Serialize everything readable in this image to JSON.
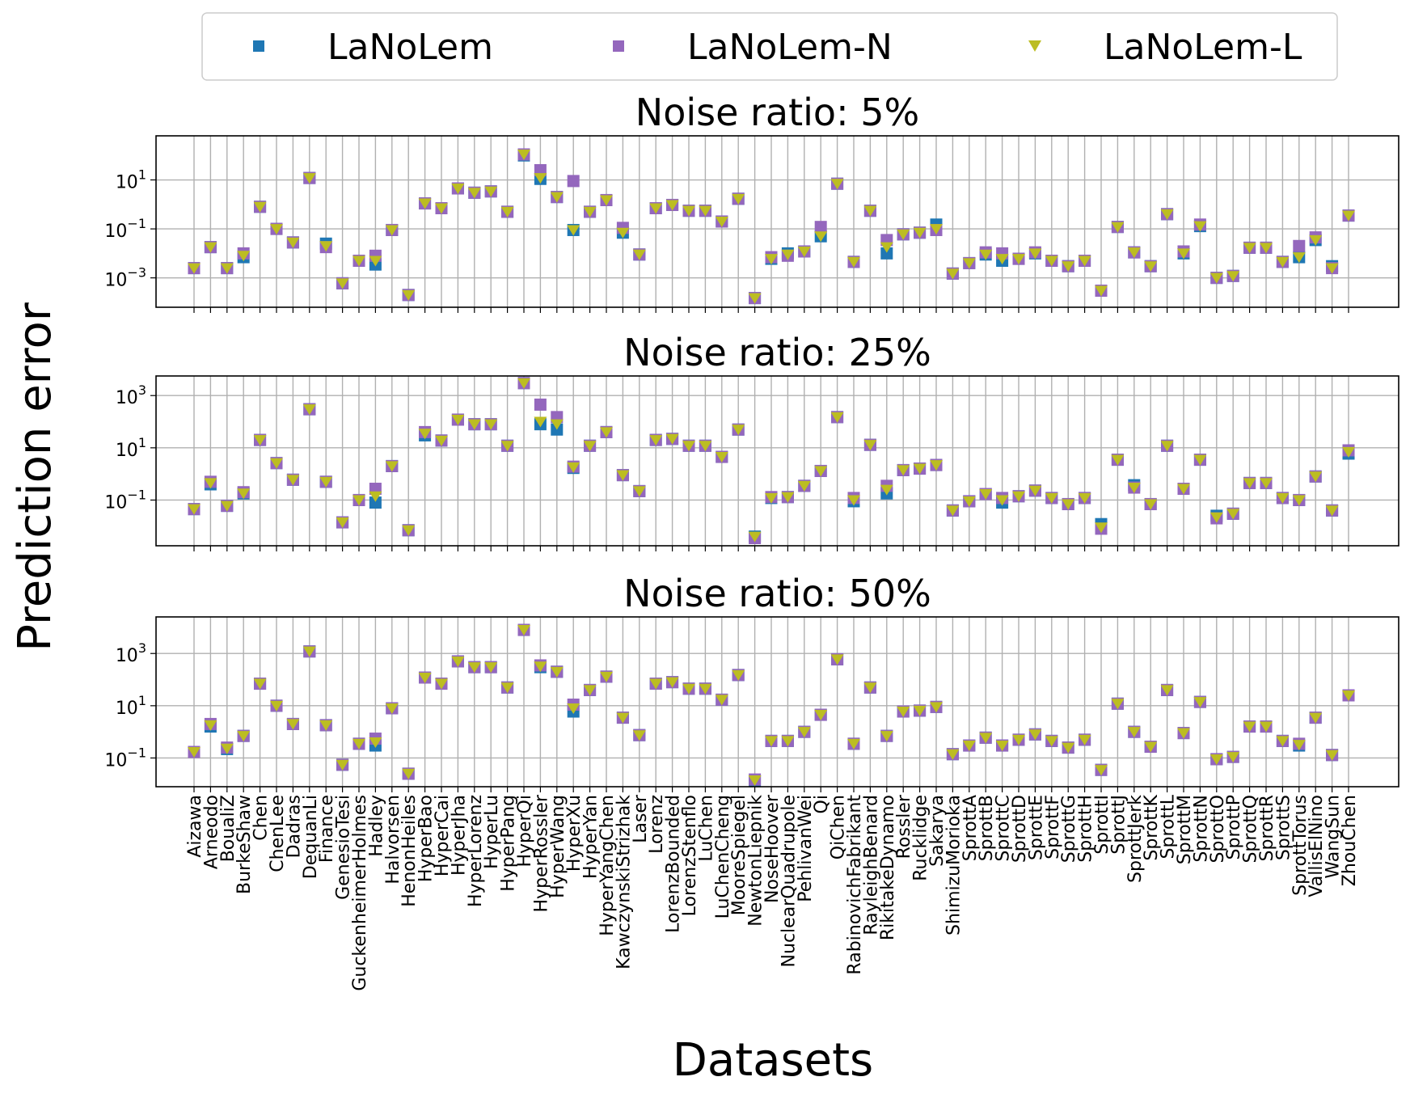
{
  "chart_data": {
    "type": "scatter",
    "ylabel": "Prediction error",
    "xlabel": "Datasets",
    "yscale": "log",
    "legend": {
      "placement": "top-center",
      "entries": [
        {
          "name": "LaNoLem",
          "marker": "square",
          "color": "#1f77b4"
        },
        {
          "name": "LaNoLem-N",
          "marker": "square",
          "color": "#9467bd"
        },
        {
          "name": "LaNoLem-L",
          "marker": "triangle-down",
          "color": "#bcbd22"
        }
      ]
    },
    "categories": [
      "Aizawa",
      "Arneodo",
      "BoualiZ",
      "BurkeShaw",
      "Chen",
      "ChenLee",
      "Dadras",
      "DequanLi",
      "Finance",
      "GenesioTesi",
      "GuckenheimerHolmes",
      "Hadley",
      "Halvorsen",
      "HenonHeiles",
      "HyperBao",
      "HyperCai",
      "HyperJha",
      "HyperLorenz",
      "HyperLu",
      "HyperPang",
      "HyperQi",
      "HyperRossler",
      "HyperWang",
      "HyperXu",
      "HyperYan",
      "HyperYangChen",
      "KawczynskiStrizhak",
      "Laser",
      "Lorenz",
      "LorenzBounded",
      "LorenzStenflo",
      "LuChen",
      "LuChenCheng",
      "MooreSpiegel",
      "NewtonLiepnik",
      "NoseHoover",
      "NuclearQuadrupole",
      "PehlivanWei",
      "Qi",
      "QiChen",
      "RabinovichFabrikant",
      "RayleighBenard",
      "RikitakeDynamo",
      "Rossler",
      "Rucklidge",
      "Sakarya",
      "ShimizuMorioka",
      "SprottA",
      "SprottB",
      "SprottC",
      "SprottD",
      "SprottE",
      "SprottF",
      "SprottG",
      "SprottH",
      "SprottI",
      "SprottJ",
      "SprottJerk",
      "SprottK",
      "SprottL",
      "SprottM",
      "SprottN",
      "SprottO",
      "SprottP",
      "SprottQ",
      "SprottR",
      "SprottS",
      "SprottTorus",
      "VallisElNino",
      "WangSun",
      "ZhouChen"
    ],
    "panels": [
      {
        "title": "Noise ratio: 5%",
        "ylim_exp": [
          -4.2,
          2.8
        ],
        "yticks": [
          {
            "exp": 1,
            "label": "10",
            "sup": "1"
          },
          {
            "exp": -1,
            "label": "10",
            "sup": "−1"
          },
          {
            "exp": -3,
            "label": "10",
            "sup": "−3"
          }
        ],
        "series": [
          {
            "name": "LaNoLem",
            "values": [
              0.0025,
              0.018,
              0.0025,
              0.007,
              0.8,
              0.1,
              0.028,
              12,
              0.025,
              0.0006,
              0.005,
              0.0035,
              0.09,
              0.0002,
              1.1,
              0.7,
              4.5,
              3,
              3.4,
              0.5,
              100,
              11,
              2.0,
              0.09,
              0.5,
              1.5,
              0.07,
              0.009,
              0.7,
              0.95,
              0.55,
              0.55,
              0.2,
              1.7,
              0.00015,
              0.006,
              0.01,
              0.012,
              0.05,
              7,
              0.0045,
              0.55,
              0.01,
              0.06,
              0.07,
              0.15,
              0.0015,
              0.004,
              0.009,
              0.005,
              0.006,
              0.01,
              0.005,
              0.003,
              0.005,
              0.0003,
              0.12,
              0.011,
              0.003,
              0.4,
              0.01,
              0.13,
              0.001,
              0.0012,
              0.017,
              0.017,
              0.0045,
              0.007,
              0.035,
              0.003,
              0.35
            ]
          },
          {
            "name": "LaNoLem-N",
            "values": [
              0.0025,
              0.018,
              0.0025,
              0.01,
              0.8,
              0.1,
              0.028,
              12,
              0.018,
              0.0006,
              0.005,
              0.008,
              0.09,
              0.0002,
              1.1,
              0.7,
              4.5,
              3,
              3.4,
              0.5,
              110,
              25,
              2.0,
              9,
              0.5,
              1.5,
              0.11,
              0.009,
              0.7,
              0.95,
              0.55,
              0.55,
              0.2,
              1.7,
              0.00015,
              0.007,
              0.008,
              0.012,
              0.12,
              7,
              0.0045,
              0.55,
              0.035,
              0.06,
              0.07,
              0.09,
              0.0015,
              0.004,
              0.011,
              0.01,
              0.006,
              0.011,
              0.005,
              0.003,
              0.005,
              0.0003,
              0.12,
              0.011,
              0.003,
              0.4,
              0.012,
              0.15,
              0.001,
              0.0012,
              0.017,
              0.017,
              0.0045,
              0.02,
              0.045,
              0.0025,
              0.35
            ]
          },
          {
            "name": "LaNoLem-L",
            "values": [
              0.0025,
              0.018,
              0.0025,
              0.008,
              0.8,
              0.1,
              0.028,
              12,
              0.02,
              0.0006,
              0.005,
              0.005,
              0.09,
              0.0002,
              1.1,
              0.7,
              4.5,
              3,
              3.4,
              0.5,
              110,
              12,
              2.0,
              0.09,
              0.5,
              1.5,
              0.07,
              0.009,
              0.7,
              0.95,
              0.55,
              0.55,
              0.2,
              1.7,
              0.00015,
              0.006,
              0.009,
              0.012,
              0.05,
              7,
              0.0045,
              0.55,
              0.018,
              0.06,
              0.07,
              0.1,
              0.0015,
              0.004,
              0.009,
              0.006,
              0.006,
              0.01,
              0.005,
              0.003,
              0.005,
              0.0003,
              0.12,
              0.011,
              0.003,
              0.4,
              0.01,
              0.13,
              0.001,
              0.0012,
              0.017,
              0.017,
              0.0045,
              0.007,
              0.035,
              0.0025,
              0.35
            ]
          }
        ]
      },
      {
        "title": "Noise ratio: 25%",
        "ylim_exp": [
          -2.75,
          3.75
        ],
        "yticks": [
          {
            "exp": 3,
            "label": "10",
            "sup": "3"
          },
          {
            "exp": 1,
            "label": "10",
            "sup": "1"
          },
          {
            "exp": -1,
            "label": "10",
            "sup": "−1"
          }
        ],
        "series": [
          {
            "name": "LaNoLem",
            "values": [
              0.045,
              0.4,
              0.06,
              0.18,
              20,
              2.6,
              0.6,
              300,
              0.5,
              0.014,
              0.1,
              0.08,
              2.0,
              0.007,
              30,
              19,
              120,
              80,
              80,
              12,
              3000,
              80,
              50,
              1.7,
              12,
              40,
              0.9,
              0.22,
              20,
              22,
              12,
              12,
              4.5,
              50,
              0.004,
              0.12,
              0.13,
              0.35,
              1.3,
              150,
              0.09,
              13,
              0.18,
              1.4,
              1.6,
              2.2,
              0.04,
              0.09,
              0.17,
              0.08,
              0.14,
              0.23,
              0.12,
              0.07,
              0.12,
              0.012,
              3.5,
              0.37,
              0.07,
              12,
              0.27,
              3.5,
              0.025,
              0.03,
              0.45,
              0.45,
              0.12,
              0.1,
              0.8,
              0.04,
              6
            ]
          },
          {
            "name": "LaNoLem-N",
            "values": [
              0.045,
              0.5,
              0.06,
              0.2,
              20,
              2.6,
              0.6,
              300,
              0.5,
              0.014,
              0.1,
              0.27,
              2.0,
              0.007,
              40,
              19,
              120,
              80,
              80,
              12,
              3000,
              450,
              150,
              1.9,
              12,
              40,
              0.9,
              0.22,
              20,
              22,
              12,
              12,
              4.5,
              50,
              0.0035,
              0.13,
              0.13,
              0.35,
              1.3,
              150,
              0.12,
              13,
              0.35,
              1.4,
              1.6,
              2.2,
              0.04,
              0.09,
              0.17,
              0.12,
              0.14,
              0.23,
              0.12,
              0.07,
              0.12,
              0.008,
              3.5,
              0.3,
              0.07,
              12,
              0.27,
              3.5,
              0.02,
              0.03,
              0.45,
              0.45,
              0.12,
              0.1,
              0.8,
              0.04,
              8
            ]
          },
          {
            "name": "LaNoLem-L",
            "values": [
              0.045,
              0.45,
              0.06,
              0.18,
              20,
              2.6,
              0.6,
              300,
              0.5,
              0.014,
              0.1,
              0.14,
              2.0,
              0.007,
              35,
              19,
              120,
              80,
              80,
              12,
              3000,
              100,
              80,
              1.8,
              12,
              40,
              0.9,
              0.22,
              20,
              22,
              12,
              12,
              4.5,
              50,
              0.004,
              0.12,
              0.13,
              0.35,
              1.3,
              150,
              0.1,
              13,
              0.25,
              1.4,
              1.6,
              2.2,
              0.04,
              0.09,
              0.17,
              0.1,
              0.14,
              0.23,
              0.12,
              0.07,
              0.12,
              0.009,
              3.5,
              0.3,
              0.07,
              12,
              0.27,
              3.5,
              0.022,
              0.03,
              0.45,
              0.45,
              0.12,
              0.1,
              0.8,
              0.04,
              7
            ]
          }
        ]
      },
      {
        "title": "Noise ratio: 50%",
        "ylim_exp": [
          -2.1,
          4.4
        ],
        "yticks": [
          {
            "exp": 3,
            "label": "10",
            "sup": "3"
          },
          {
            "exp": 1,
            "label": "10",
            "sup": "1"
          },
          {
            "exp": -1,
            "label": "10",
            "sup": "−1"
          }
        ],
        "series": [
          {
            "name": "LaNoLem",
            "values": [
              0.17,
              1.6,
              0.22,
              0.7,
              70,
              10,
              2,
              1200,
              1.8,
              0.055,
              0.35,
              0.3,
              8,
              0.025,
              120,
              70,
              500,
              300,
              300,
              50,
              8000,
              300,
              200,
              6,
              40,
              130,
              3.5,
              0.75,
              70,
              80,
              45,
              45,
              17,
              150,
              0.013,
              0.45,
              0.45,
              1,
              4.5,
              600,
              0.35,
              50,
              0.7,
              6,
              6.5,
              9,
              0.14,
              0.3,
              0.6,
              0.3,
              0.5,
              0.8,
              0.45,
              0.25,
              0.5,
              0.035,
              12,
              1,
              0.27,
              40,
              0.9,
              14,
              0.09,
              0.11,
              1.6,
              1.6,
              0.45,
              0.3,
              3.5,
              0.13,
              25
            ]
          },
          {
            "name": "LaNoLem-N",
            "values": [
              0.17,
              2,
              0.25,
              0.7,
              70,
              10,
              2,
              1200,
              1.8,
              0.055,
              0.35,
              0.55,
              8,
              0.025,
              120,
              70,
              500,
              300,
              300,
              50,
              8000,
              350,
              200,
              11,
              40,
              130,
              3.5,
              0.75,
              70,
              80,
              45,
              45,
              17,
              150,
              0.015,
              0.45,
              0.45,
              1,
              4.5,
              600,
              0.35,
              50,
              0.7,
              6,
              6.5,
              9,
              0.14,
              0.3,
              0.6,
              0.3,
              0.5,
              0.8,
              0.45,
              0.25,
              0.5,
              0.035,
              12,
              1,
              0.27,
              40,
              0.9,
              14,
              0.09,
              0.11,
              1.6,
              1.6,
              0.45,
              0.35,
              3.5,
              0.13,
              25
            ]
          },
          {
            "name": "LaNoLem-L",
            "values": [
              0.17,
              1.8,
              0.23,
              0.7,
              70,
              10,
              2,
              1200,
              1.8,
              0.055,
              0.35,
              0.4,
              8,
              0.025,
              120,
              70,
              500,
              300,
              300,
              50,
              8000,
              320,
              200,
              8,
              40,
              130,
              3.5,
              0.75,
              70,
              80,
              45,
              45,
              17,
              150,
              0.014,
              0.45,
              0.45,
              1,
              4.5,
              600,
              0.35,
              50,
              0.7,
              6,
              6.5,
              9,
              0.14,
              0.3,
              0.6,
              0.3,
              0.5,
              0.8,
              0.45,
              0.25,
              0.5,
              0.035,
              12,
              1,
              0.27,
              40,
              0.9,
              14,
              0.09,
              0.11,
              1.6,
              1.6,
              0.45,
              0.32,
              3.5,
              0.13,
              25
            ]
          }
        ]
      }
    ]
  }
}
